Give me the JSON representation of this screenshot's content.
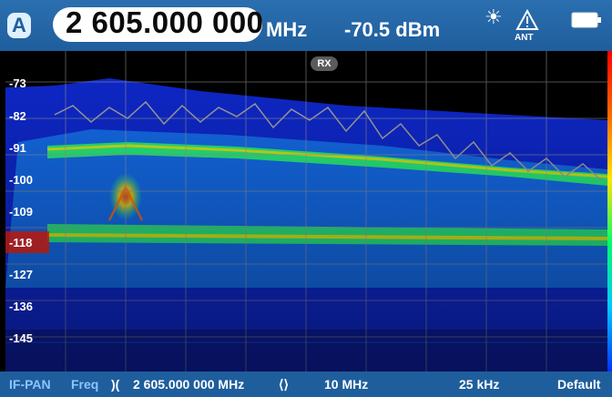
{
  "header": {
    "mode_badge": "A",
    "frequency": "2 605.000 000",
    "frequency_unit": "MHz",
    "level": "-70.5 dBm",
    "antenna_label": "ANT",
    "icons": [
      "sun-icon",
      "antenna-warning-icon",
      "battery-icon"
    ]
  },
  "spectrum": {
    "rx_badge": "RX",
    "y_ticks": [
      "-73",
      "-82",
      "-91",
      "-100",
      "-109",
      "-118",
      "-127",
      "-136",
      "-145"
    ]
  },
  "footer": {
    "mode_name": "IF-PAN",
    "freq_label": "Freq",
    "freq_icon": "ꓘ",
    "center_freq": "2 605.000 000 MHz",
    "span_icon": "ꓘ",
    "span_value": "10 MHz",
    "rbw_value": "25 kHz",
    "preset_label": "Default"
  },
  "colors": {
    "header_bg": "#1f5e9c",
    "accent": "#1f5e9c",
    "spectrum_bg": "#0c0c6e",
    "trace": "#a0a0a0"
  }
}
